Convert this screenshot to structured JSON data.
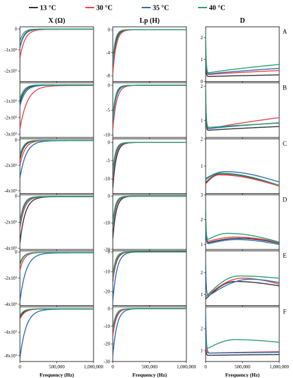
{
  "chart_data": {
    "type": "line",
    "legend": {
      "placement": "top",
      "entries": [
        {
          "label": "13 °C",
          "color": "#333333"
        },
        {
          "label": "30 °C",
          "color": "#e8474f"
        },
        {
          "label": "35 °C",
          "color": "#2f6fb8"
        },
        {
          "label": "40 °C",
          "color": "#2e9e6e"
        }
      ]
    },
    "columns": [
      {
        "title": "X (Ω)"
      },
      {
        "title": "Lp (H)"
      },
      {
        "title": "D"
      }
    ],
    "rows": [
      "A",
      "B",
      "C",
      "D",
      "E",
      "F"
    ],
    "xlabel": "Frequency (Hz)",
    "xlim": [
      0,
      1000000
    ],
    "xticks": [
      0,
      500000,
      1000000
    ],
    "xtick_labels": [
      "0",
      "500,000",
      "1,000,000"
    ],
    "grid": false,
    "panels": [
      {
        "row": "A",
        "column": "X (Ω)",
        "ylim": [
          -2500000,
          100000
        ],
        "ytick_labels": [
          "0",
          "-1x10⁶",
          "-2x10⁶"
        ],
        "yticks": [
          0,
          -1000000,
          -2000000
        ],
        "curves": [
          {
            "series": "13 °C",
            "start": -900000,
            "end": -10000,
            "k": 18
          },
          {
            "series": "30 °C",
            "start": -1400000,
            "end": -15000,
            "k": 15
          },
          {
            "series": "35 °C",
            "start": -900000,
            "end": -12000,
            "k": 20
          },
          {
            "series": "40 °C",
            "start": -600000,
            "end": -8000,
            "k": 22
          }
        ]
      },
      {
        "row": "A",
        "column": "Lp (H)",
        "ylim": [
          -9,
          0.5
        ],
        "ytick_labels": [
          "0",
          "-4",
          "-8"
        ],
        "yticks": [
          0,
          -4,
          -8
        ],
        "curves": [
          {
            "series": "13 °C",
            "start": -6.5,
            "end": 0,
            "k": 25
          },
          {
            "series": "30 °C",
            "start": -7.8,
            "end": 0,
            "k": 22
          },
          {
            "series": "35 °C",
            "start": -6.0,
            "end": 0,
            "k": 28
          },
          {
            "series": "40 °C",
            "start": -5.5,
            "end": 0,
            "k": 30
          }
        ]
      },
      {
        "row": "A",
        "column": "D",
        "ylim": [
          0,
          2.5
        ],
        "ytick_labels": [
          "0",
          "1",
          "2"
        ],
        "yticks": [
          0,
          1,
          2
        ],
        "curves": [
          {
            "series": "13 °C",
            "start": 1.2,
            "min": 0.22,
            "end": 0.3,
            "k": 40
          },
          {
            "series": "30 °C",
            "start": 1.5,
            "min": 0.3,
            "end": 0.5,
            "k": 35
          },
          {
            "series": "35 °C",
            "start": 1.8,
            "min": 0.32,
            "end": 0.6,
            "k": 35
          },
          {
            "series": "40 °C",
            "start": 2.2,
            "min": 0.36,
            "end": 0.78,
            "k": 32
          }
        ]
      },
      {
        "row": "B",
        "column": "X (Ω)",
        "ylim": [
          -3200000,
          100000
        ],
        "ytick_labels": [
          "-1x10⁶",
          "-2x10⁶",
          "-3x10⁶"
        ],
        "yticks": [
          -1000000,
          -2000000,
          -3000000
        ],
        "curves": [
          {
            "series": "13 °C",
            "start": -1100000,
            "end": -30000,
            "k": 16
          },
          {
            "series": "30 °C",
            "start": -2700000,
            "end": -60000,
            "k": 10
          },
          {
            "series": "35 °C",
            "start": -1300000,
            "end": -40000,
            "k": 14
          },
          {
            "series": "40 °C",
            "start": -900000,
            "end": -20000,
            "k": 18
          }
        ]
      },
      {
        "row": "B",
        "column": "Lp (H)",
        "ylim": [
          -10.5,
          0.5
        ],
        "ytick_labels": [
          "0",
          "-5",
          "-10"
        ],
        "yticks": [
          0,
          -5,
          -10
        ],
        "curves": [
          {
            "series": "13 °C",
            "start": -7.0,
            "end": 0,
            "k": 25
          },
          {
            "series": "30 °C",
            "start": -9.0,
            "end": 0,
            "k": 20
          },
          {
            "series": "35 °C",
            "start": -7.5,
            "end": 0,
            "k": 24
          },
          {
            "series": "40 °C",
            "start": -6.5,
            "end": 0,
            "k": 28
          }
        ]
      },
      {
        "row": "B",
        "column": "D",
        "ylim": [
          0.5,
          2.1
        ],
        "ytick_labels": [
          "1",
          "2"
        ],
        "yticks": [
          1,
          2
        ],
        "curves": [
          {
            "series": "13 °C",
            "start": 1.6,
            "min": 0.7,
            "end": 0.82,
            "k": 40
          },
          {
            "series": "30 °C",
            "start": 1.8,
            "min": 0.72,
            "end": 1.08,
            "k": 35
          },
          {
            "series": "35 °C",
            "start": 1.9,
            "min": 0.74,
            "end": 0.93,
            "k": 35
          },
          {
            "series": "40 °C",
            "start": 2.0,
            "min": 0.78,
            "end": 0.92,
            "k": 32
          }
        ]
      },
      {
        "row": "C",
        "column": "X (Ω)",
        "ylim": [
          -4200000,
          100000
        ],
        "ytick_labels": [
          "0",
          "-2x10⁶",
          "-4x10⁶"
        ],
        "yticks": [
          0,
          -2000000,
          -4000000
        ],
        "curves": [
          {
            "series": "13 °C",
            "start": -1500000,
            "end": -25000,
            "k": 18
          },
          {
            "series": "30 °C",
            "start": -2000000,
            "end": -30000,
            "k": 15
          },
          {
            "series": "35 °C",
            "start": -3000000,
            "end": -40000,
            "k": 12
          },
          {
            "series": "40 °C",
            "start": -1200000,
            "end": -20000,
            "k": 20
          }
        ]
      },
      {
        "row": "C",
        "column": "Lp (H)",
        "ylim": [
          -14,
          1
        ],
        "ytick_labels": [
          "0",
          "-5",
          "-10"
        ],
        "yticks": [
          0,
          -5,
          -10
        ],
        "curves": [
          {
            "series": "13 °C",
            "start": -12.5,
            "end": 0,
            "k": 22
          },
          {
            "series": "30 °C",
            "start": -10.0,
            "end": 0,
            "k": 24
          },
          {
            "series": "35 °C",
            "start": -9.0,
            "end": 0,
            "k": 26
          },
          {
            "series": "40 °C",
            "start": -8.0,
            "end": 0,
            "k": 28
          }
        ]
      },
      {
        "row": "C",
        "column": "D",
        "ylim": [
          0,
          2
        ],
        "ytick_labels": [
          "1",
          "2"
        ],
        "yticks": [
          1,
          2
        ],
        "curves": [
          {
            "series": "13 °C",
            "start": 0.4,
            "peak": 0.72,
            "peakx": 200000,
            "end": 0.28,
            "k": 30
          },
          {
            "series": "30 °C",
            "start": 0.35,
            "peak": 0.68,
            "peakx": 180000,
            "end": 0.27,
            "k": 30
          },
          {
            "series": "35 °C",
            "start": 0.55,
            "peak": 0.8,
            "peakx": 260000,
            "end": 0.42,
            "k": 30
          },
          {
            "series": "40 °C",
            "start": 0.5,
            "peak": 0.74,
            "peakx": 200000,
            "end": 0.3,
            "k": 30
          }
        ]
      },
      {
        "row": "D",
        "column": "X (Ω)",
        "ylim": [
          -4100000,
          100000
        ],
        "ytick_labels": [
          "0",
          "-2x10⁶",
          "-4x10⁶"
        ],
        "yticks": [
          0,
          -2000000,
          -4000000
        ],
        "curves": [
          {
            "series": "13 °C",
            "start": -3600000,
            "end": -40000,
            "k": 14
          },
          {
            "series": "30 °C",
            "start": -2500000,
            "end": -35000,
            "k": 16
          },
          {
            "series": "35 °C",
            "start": -2200000,
            "end": -30000,
            "k": 18
          },
          {
            "series": "40 °C",
            "start": -2000000,
            "end": -25000,
            "k": 20
          }
        ]
      },
      {
        "row": "D",
        "column": "Lp (H)",
        "ylim": [
          -20,
          0.5
        ],
        "ytick_labels": [
          "0",
          "-10",
          "-20"
        ],
        "yticks": [
          0,
          -10,
          -20
        ],
        "curves": [
          {
            "series": "13 °C",
            "start": -16.0,
            "end": 0,
            "k": 22
          },
          {
            "series": "30 °C",
            "start": -12.0,
            "end": 0,
            "k": 24
          },
          {
            "series": "35 °C",
            "start": -11.0,
            "end": 0,
            "k": 26
          },
          {
            "series": "40 °C",
            "start": -10.0,
            "end": 0,
            "k": 28
          }
        ]
      },
      {
        "row": "D",
        "column": "D",
        "ylim": [
          0.8,
          3
        ],
        "ytick_labels": [
          "1",
          "2",
          "3"
        ],
        "yticks": [
          1,
          2,
          3
        ],
        "curves": [
          {
            "series": "13 °C",
            "start": 2.2,
            "min": 1.05,
            "peak": 1.25,
            "peakx": 450000,
            "end": 1.05,
            "k": 35
          },
          {
            "series": "30 °C",
            "start": 2.4,
            "min": 1.1,
            "peak": 1.3,
            "peakx": 400000,
            "end": 1.1,
            "k": 35
          },
          {
            "series": "35 °C",
            "start": 2.0,
            "min": 1.0,
            "peak": 1.2,
            "peakx": 420000,
            "end": 1.0,
            "k": 35
          },
          {
            "series": "40 °C",
            "start": 2.5,
            "min": 1.15,
            "peak": 1.45,
            "peakx": 300000,
            "end": 1.1,
            "k": 35
          }
        ]
      },
      {
        "row": "E",
        "column": "X (Ω)",
        "ylim": [
          -4100000,
          100000
        ],
        "ytick_labels": [
          "0",
          "-2x10⁶",
          "-4x10⁶"
        ],
        "yticks": [
          0,
          -2000000,
          -4000000
        ],
        "curves": [
          {
            "series": "13 °C",
            "start": -900000,
            "end": -20000,
            "k": 20
          },
          {
            "series": "30 °C",
            "start": -1400000,
            "end": -25000,
            "k": 18
          },
          {
            "series": "35 °C",
            "start": -3800000,
            "end": -50000,
            "k": 12
          },
          {
            "series": "40 °C",
            "start": -1000000,
            "end": -20000,
            "k": 20
          }
        ]
      },
      {
        "row": "E",
        "column": "Lp (H)",
        "ylim": [
          -27,
          0.5
        ],
        "ytick_labels": [
          "0",
          "-10",
          "-20"
        ],
        "yticks": [
          0,
          -10,
          -20
        ],
        "curves": [
          {
            "series": "13 °C",
            "start": -15.0,
            "end": 0,
            "k": 22
          },
          {
            "series": "30 °C",
            "start": -14.0,
            "end": 0,
            "k": 24
          },
          {
            "series": "35 °C",
            "start": -25.0,
            "end": 0,
            "k": 18
          },
          {
            "series": "40 °C",
            "start": -12.0,
            "end": 0,
            "k": 26
          }
        ]
      },
      {
        "row": "E",
        "column": "D",
        "ylim": [
          0.5,
          3
        ],
        "ytick_labels": [
          "1",
          "2"
        ],
        "yticks": [
          1,
          2
        ],
        "curves": [
          {
            "series": "13 °C",
            "start": 0.8,
            "peak": 1.6,
            "peakx": 400000,
            "end": 1.4,
            "k": 25
          },
          {
            "series": "30 °C",
            "start": 0.9,
            "peak": 1.75,
            "peakx": 500000,
            "end": 1.48,
            "k": 25
          },
          {
            "series": "35 °C",
            "start": 2.5,
            "min": 0.85,
            "peak": 1.7,
            "peakx": 600000,
            "end": 1.55,
            "k": 30
          },
          {
            "series": "40 °C",
            "start": 0.9,
            "peak": 1.85,
            "peakx": 450000,
            "end": 1.75,
            "k": 25
          }
        ]
      },
      {
        "row": "F",
        "column": "X (Ω)",
        "ylim": [
          -9000000,
          300000
        ],
        "ytick_labels": [
          "-4x10⁶",
          "-8x10⁶"
        ],
        "yticks": [
          -4000000,
          -8000000
        ],
        "curves": [
          {
            "series": "13 °C",
            "start": -1500000,
            "end": -40000,
            "k": 18
          },
          {
            "series": "30 °C",
            "start": -1800000,
            "end": -45000,
            "k": 16
          },
          {
            "series": "35 °C",
            "start": -8500000,
            "end": -80000,
            "k": 12
          },
          {
            "series": "40 °C",
            "start": -1200000,
            "end": -30000,
            "k": 20
          }
        ]
      },
      {
        "row": "F",
        "column": "Lp (H)",
        "ylim": [
          -30,
          1
        ],
        "ytick_labels": [
          "0",
          "-10",
          "-20",
          "-30"
        ],
        "yticks": [
          0,
          -10,
          -20,
          -30
        ],
        "curves": [
          {
            "series": "13 °C",
            "start": -14.0,
            "end": 0,
            "k": 22
          },
          {
            "series": "30 °C",
            "start": -16.0,
            "end": 0,
            "k": 22
          },
          {
            "series": "35 °C",
            "start": -27.0,
            "end": 0,
            "k": 18
          },
          {
            "series": "40 °C",
            "start": -12.0,
            "end": 0,
            "k": 26
          }
        ]
      },
      {
        "row": "F",
        "column": "D",
        "ylim": [
          0.5,
          3
        ],
        "ytick_labels": [
          "1",
          "2"
        ],
        "yticks": [
          1,
          2
        ],
        "curves": [
          {
            "series": "13 °C",
            "start": 1.2,
            "min": 0.78,
            "end": 0.82,
            "k": 40
          },
          {
            "series": "30 °C",
            "start": 1.4,
            "min": 0.88,
            "end": 0.95,
            "k": 35
          },
          {
            "series": "35 °C",
            "start": 2.8,
            "min": 0.88,
            "end": 0.92,
            "k": 28
          },
          {
            "series": "40 °C",
            "start": 1.6,
            "min": 1.05,
            "peak": 1.5,
            "peakx": 400000,
            "end": 1.38,
            "k": 30
          }
        ]
      }
    ]
  }
}
